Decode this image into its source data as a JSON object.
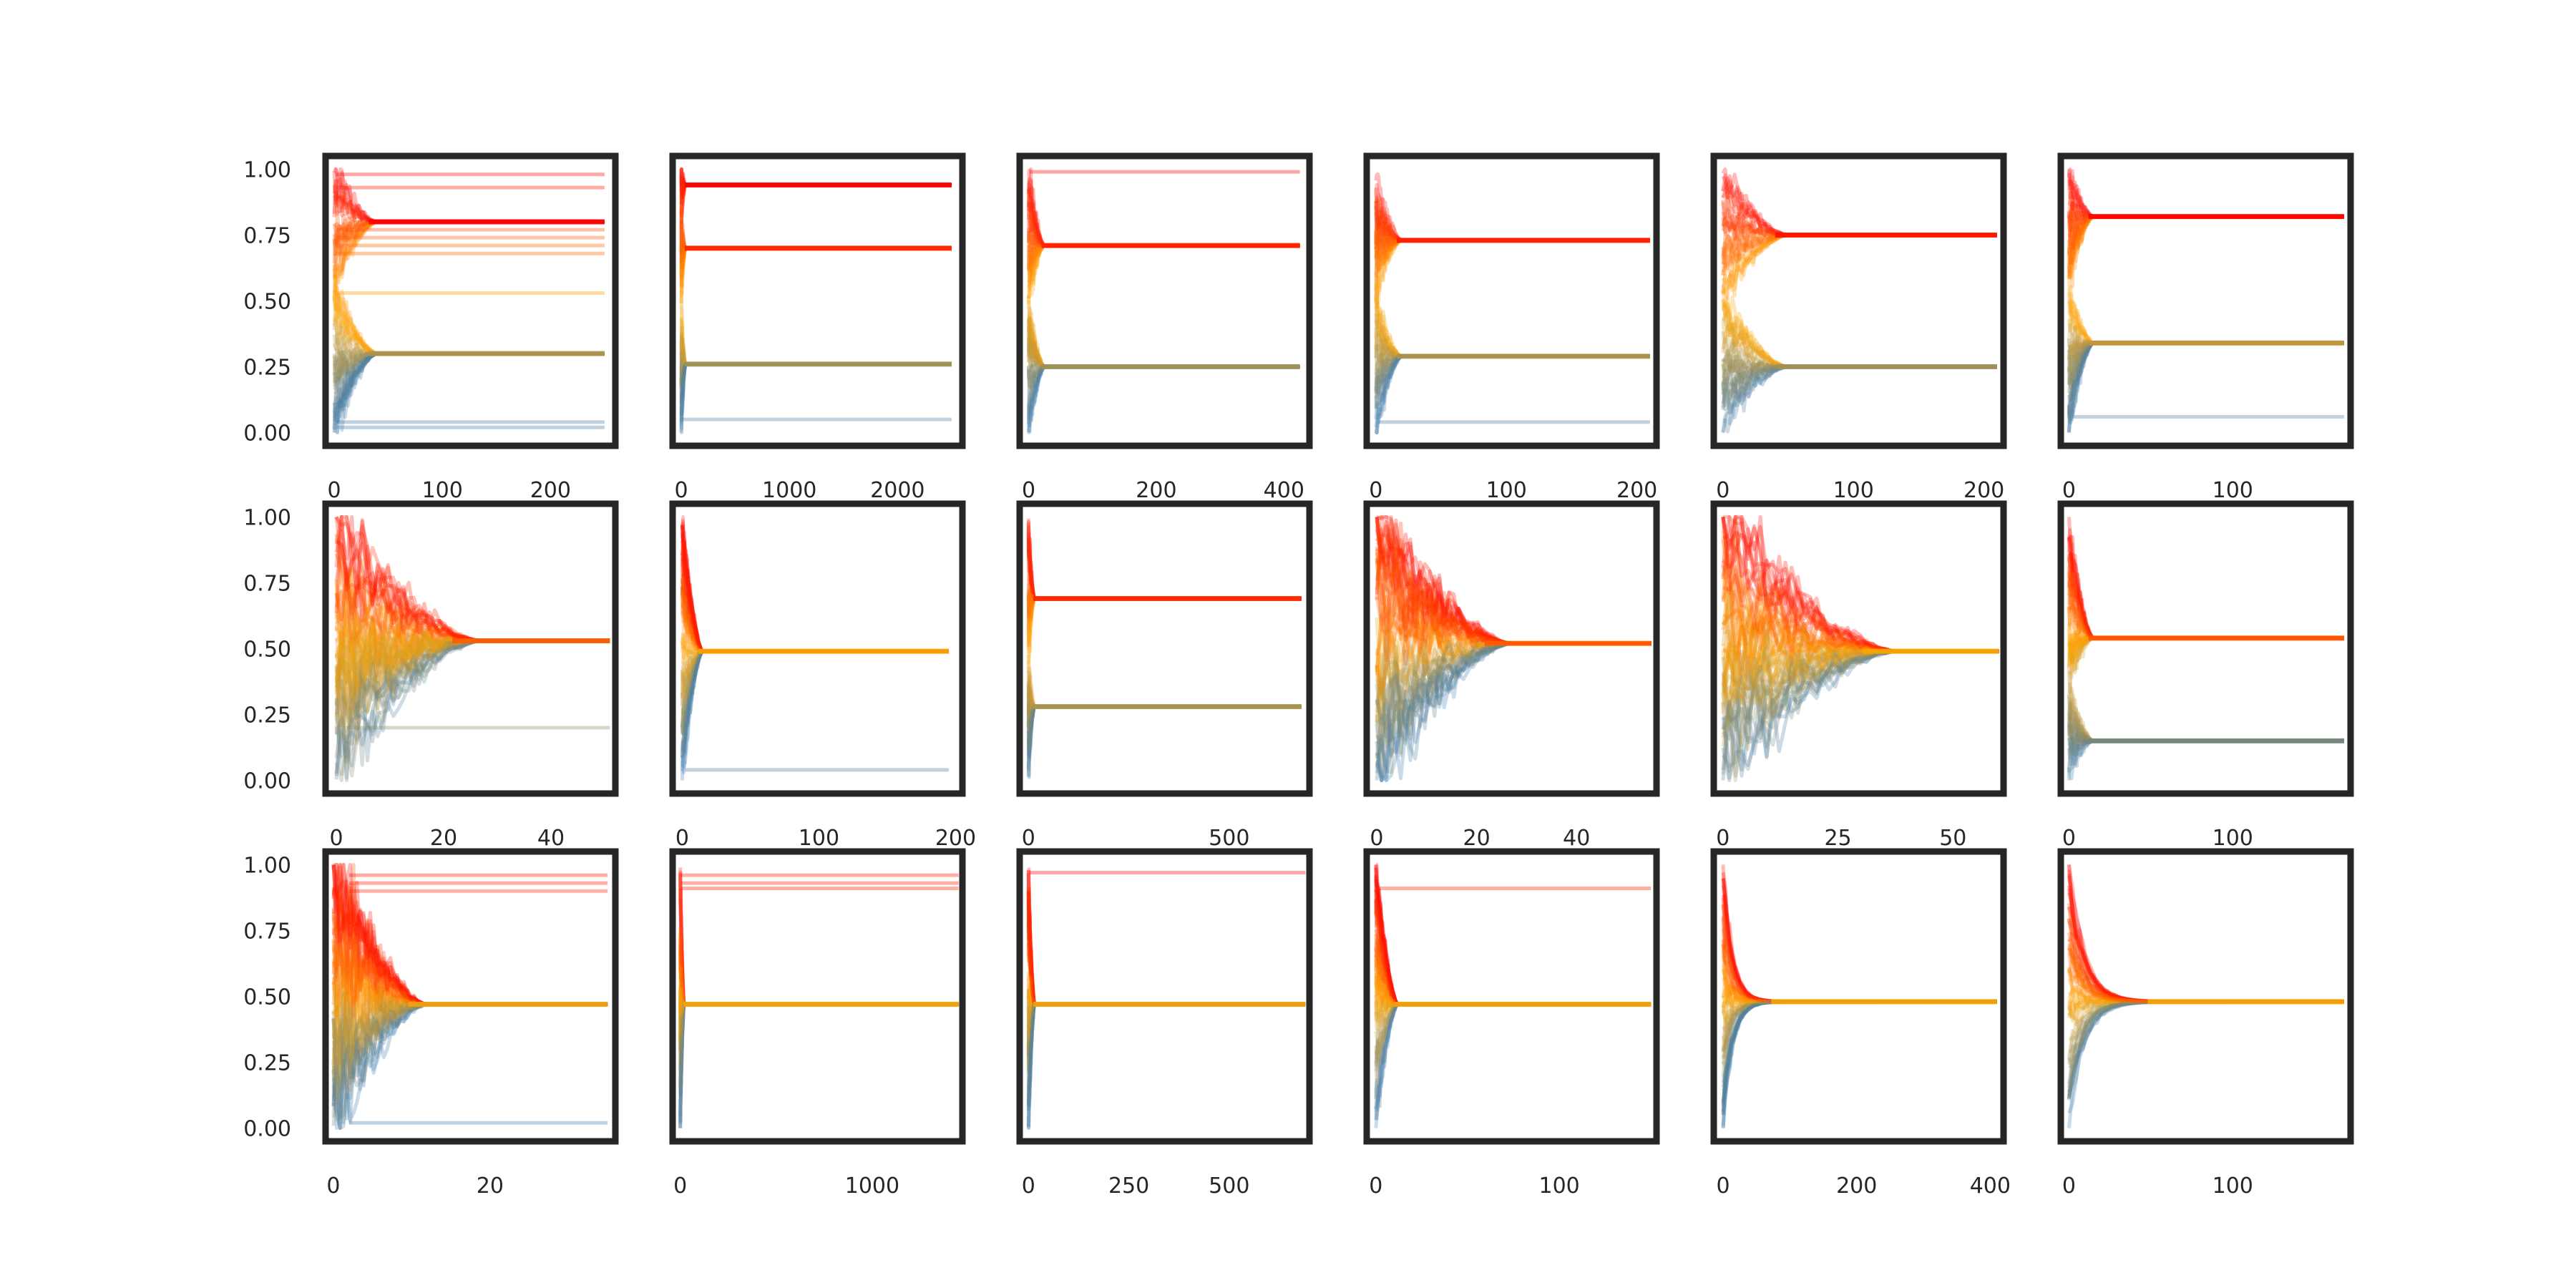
{
  "figure": {
    "rows": 3,
    "cols": 6,
    "series_colors": {
      "start_high": "#ff0000",
      "mid": "#ffa500",
      "start_low": "#3b7bb3"
    }
  },
  "chart_data": [
    {
      "type": "line",
      "xlim": [
        -8,
        260
      ],
      "ylim": [
        -0.05,
        1.05
      ],
      "xticks": [
        0,
        100,
        200
      ],
      "xtick_labels": [
        "0",
        "100",
        "200"
      ],
      "yticks": [
        0,
        0.25,
        0.5,
        0.75,
        1
      ],
      "ytick_labels": [
        "0.00",
        "0.25",
        "0.50",
        "0.75",
        "1.00"
      ],
      "x_max": 250,
      "t_converge": 40,
      "mode": "clusters",
      "clusters": [
        0.8,
        0.3
      ],
      "stuck": [
        0.98,
        0.93,
        0.77,
        0.74,
        0.71,
        0.68,
        0.53,
        0.04,
        0.02
      ],
      "grid": false
    },
    {
      "type": "line",
      "xlim": [
        -80,
        2600
      ],
      "ylim": [
        -0.05,
        1.05
      ],
      "xticks": [
        0,
        1000,
        2000
      ],
      "xtick_labels": [
        "0",
        "1000",
        "2000"
      ],
      "yticks": [
        0,
        0.25,
        0.5,
        0.75,
        1
      ],
      "ytick_labels": [
        "",
        "",
        "",
        "",
        ""
      ],
      "x_max": 2500,
      "t_converge": 40,
      "mode": "clusters",
      "clusters": [
        0.94,
        0.7,
        0.26
      ],
      "stuck": [
        0.05
      ],
      "grid": false
    },
    {
      "type": "line",
      "xlim": [
        -14,
        440
      ],
      "ylim": [
        -0.05,
        1.05
      ],
      "xticks": [
        0,
        200,
        400
      ],
      "xtick_labels": [
        "0",
        "200",
        "400"
      ],
      "yticks": [
        0,
        0.25,
        0.5,
        0.75,
        1
      ],
      "ytick_labels": [
        "",
        "",
        "",
        "",
        ""
      ],
      "x_max": 425,
      "t_converge": 25,
      "mode": "clusters",
      "clusters": [
        0.71,
        0.25
      ],
      "stuck": [
        0.99
      ],
      "grid": false
    },
    {
      "type": "line",
      "xlim": [
        -7,
        215
      ],
      "ylim": [
        -0.05,
        1.05
      ],
      "xticks": [
        0,
        100,
        200
      ],
      "xtick_labels": [
        "0",
        "100",
        "200"
      ],
      "yticks": [
        0,
        0.25,
        0.5,
        0.75,
        1
      ],
      "ytick_labels": [
        "",
        "",
        "",
        "",
        ""
      ],
      "x_max": 210,
      "t_converge": 20,
      "mode": "clusters",
      "clusters": [
        0.73,
        0.29
      ],
      "stuck": [
        0.04
      ],
      "grid": false
    },
    {
      "type": "line",
      "xlim": [
        -7,
        215
      ],
      "ylim": [
        -0.05,
        1.05
      ],
      "xticks": [
        0,
        100,
        200
      ],
      "xtick_labels": [
        "0",
        "100",
        "200"
      ],
      "yticks": [
        0,
        0.25,
        0.5,
        0.75,
        1
      ],
      "ytick_labels": [
        "",
        "",
        "",
        "",
        ""
      ],
      "x_max": 210,
      "t_converge": 50,
      "mode": "clusters",
      "clusters": [
        0.75,
        0.25
      ],
      "stuck": [],
      "grid": false
    },
    {
      "type": "line",
      "xlim": [
        -5,
        172
      ],
      "ylim": [
        -0.05,
        1.05
      ],
      "xticks": [
        0,
        100
      ],
      "xtick_labels": [
        "0",
        "100"
      ],
      "yticks": [
        0,
        0.25,
        0.5,
        0.75,
        1
      ],
      "ytick_labels": [
        "",
        "",
        "",
        "",
        ""
      ],
      "x_max": 168,
      "t_converge": 15,
      "mode": "clusters",
      "clusters": [
        0.82,
        0.34
      ],
      "stuck": [
        0.06
      ],
      "grid": false
    },
    {
      "type": "line",
      "xlim": [
        -2,
        52
      ],
      "ylim": [
        -0.05,
        1.05
      ],
      "xticks": [
        0,
        20,
        40
      ],
      "xtick_labels": [
        "0",
        "20",
        "40"
      ],
      "yticks": [
        0,
        0.25,
        0.5,
        0.75,
        1
      ],
      "ytick_labels": [
        "0.00",
        "0.25",
        "0.50",
        "0.75",
        "1.00"
      ],
      "x_max": 51,
      "t_converge": 27,
      "mode": "diffuse",
      "clusters": [
        0.53
      ],
      "stuck": [
        0.2
      ],
      "grid": false
    },
    {
      "type": "line",
      "xlim": [
        -7,
        205
      ],
      "ylim": [
        -0.05,
        1.05
      ],
      "xticks": [
        0,
        100,
        200
      ],
      "xtick_labels": [
        "0",
        "100",
        "200"
      ],
      "yticks": [
        0,
        0.25,
        0.5,
        0.75,
        1
      ],
      "ytick_labels": [
        "",
        "",
        "",
        "",
        ""
      ],
      "x_max": 195,
      "t_converge": 15,
      "mode": "clusters",
      "clusters": [
        0.49
      ],
      "stuck": [
        0.04
      ],
      "grid": false
    },
    {
      "type": "line",
      "xlim": [
        -22,
        700
      ],
      "ylim": [
        -0.05,
        1.05
      ],
      "xticks": [
        0,
        500
      ],
      "xtick_labels": [
        "0",
        "500"
      ],
      "yticks": [
        0,
        0.25,
        0.5,
        0.75,
        1
      ],
      "ytick_labels": [
        "",
        "",
        "",
        "",
        ""
      ],
      "x_max": 680,
      "t_converge": 15,
      "mode": "clusters",
      "clusters": [
        0.69,
        0.28
      ],
      "stuck": [],
      "grid": false
    },
    {
      "type": "line",
      "xlim": [
        -2,
        56
      ],
      "ylim": [
        -0.05,
        1.05
      ],
      "xticks": [
        0,
        20,
        40
      ],
      "xtick_labels": [
        "0",
        "20",
        "40"
      ],
      "yticks": [
        0,
        0.25,
        0.5,
        0.75,
        1
      ],
      "ytick_labels": [
        "",
        "",
        "",
        "",
        ""
      ],
      "x_max": 55,
      "t_converge": 27,
      "mode": "diffuse",
      "clusters": [
        0.52
      ],
      "stuck": [],
      "grid": false
    },
    {
      "type": "line",
      "xlim": [
        -2,
        61
      ],
      "ylim": [
        -0.05,
        1.05
      ],
      "xticks": [
        0,
        25,
        50
      ],
      "xtick_labels": [
        "0",
        "25",
        "50"
      ],
      "yticks": [
        0,
        0.25,
        0.5,
        0.75,
        1
      ],
      "ytick_labels": [
        "",
        "",
        "",
        "",
        ""
      ],
      "x_max": 60,
      "t_converge": 38,
      "mode": "diffuse",
      "clusters": [
        0.49
      ],
      "stuck": [],
      "grid": false
    },
    {
      "type": "line",
      "xlim": [
        -5,
        172
      ],
      "ylim": [
        -0.05,
        1.05
      ],
      "xticks": [
        0,
        100
      ],
      "xtick_labels": [
        "0",
        "100"
      ],
      "yticks": [
        0,
        0.25,
        0.5,
        0.75,
        1
      ],
      "ytick_labels": [
        "",
        "",
        "",
        "",
        ""
      ],
      "x_max": 168,
      "t_converge": 15,
      "mode": "clusters",
      "clusters": [
        0.54,
        0.15
      ],
      "stuck": [],
      "grid": false
    },
    {
      "type": "line",
      "xlim": [
        -1,
        36
      ],
      "ylim": [
        -0.05,
        1.05
      ],
      "xticks": [
        0,
        20
      ],
      "xtick_labels": [
        "0",
        "20"
      ],
      "yticks": [
        0,
        0.25,
        0.5,
        0.75,
        1
      ],
      "ytick_labels": [
        "0.00",
        "0.25",
        "0.50",
        "0.75",
        "1.00"
      ],
      "x_max": 35,
      "t_converge": 12,
      "mode": "diffuse",
      "clusters": [
        0.47
      ],
      "stuck": [
        0.96,
        0.93,
        0.9,
        0.02
      ],
      "grid": false
    },
    {
      "type": "line",
      "xlim": [
        -40,
        1470
      ],
      "ylim": [
        -0.05,
        1.05
      ],
      "xticks": [
        0,
        1000
      ],
      "xtick_labels": [
        "0",
        "1000"
      ],
      "yticks": [
        0,
        0.25,
        0.5,
        0.75,
        1
      ],
      "ytick_labels": [
        "",
        "",
        "",
        "",
        ""
      ],
      "x_max": 1450,
      "t_converge": 20,
      "mode": "clusters",
      "clusters": [
        0.47
      ],
      "stuck": [
        0.96,
        0.93,
        0.91
      ],
      "grid": false
    },
    {
      "type": "line",
      "xlim": [
        -22,
        700
      ],
      "ylim": [
        -0.05,
        1.05
      ],
      "xticks": [
        0,
        250,
        500
      ],
      "xtick_labels": [
        "0",
        "250",
        "500"
      ],
      "yticks": [
        0,
        0.25,
        0.5,
        0.75,
        1
      ],
      "ytick_labels": [
        "",
        "",
        "",
        "",
        ""
      ],
      "x_max": 690,
      "t_converge": 15,
      "mode": "clusters",
      "clusters": [
        0.47
      ],
      "stuck": [
        0.97
      ],
      "grid": false
    },
    {
      "type": "line",
      "xlim": [
        -5,
        153
      ],
      "ylim": [
        -0.05,
        1.05
      ],
      "xticks": [
        0,
        100
      ],
      "xtick_labels": [
        "0",
        "100"
      ],
      "yticks": [
        0,
        0.25,
        0.5,
        0.75,
        1
      ],
      "ytick_labels": [
        "",
        "",
        "",
        "",
        ""
      ],
      "x_max": 150,
      "t_converge": 12,
      "mode": "clusters",
      "clusters": [
        0.47
      ],
      "stuck": [
        0.91
      ],
      "grid": false
    },
    {
      "type": "line",
      "xlim": [
        -14,
        420
      ],
      "ylim": [
        -0.05,
        1.05
      ],
      "xticks": [
        0,
        200,
        400
      ],
      "xtick_labels": [
        "0",
        "200",
        "400"
      ],
      "yticks": [
        0,
        0.25,
        0.5,
        0.75,
        1
      ],
      "ytick_labels": [
        "",
        "",
        "",
        "",
        ""
      ],
      "x_max": 410,
      "t_converge": 90,
      "mode": "decay",
      "clusters": [
        0.48
      ],
      "stuck": [],
      "grid": false
    },
    {
      "type": "line",
      "xlim": [
        -5,
        172
      ],
      "ylim": [
        -0.05,
        1.05
      ],
      "xticks": [
        0,
        100
      ],
      "xtick_labels": [
        "0",
        "100"
      ],
      "yticks": [
        0,
        0.25,
        0.5,
        0.75,
        1
      ],
      "ytick_labels": [
        "",
        "",
        "",
        "",
        ""
      ],
      "x_max": 168,
      "t_converge": 60,
      "mode": "decay",
      "clusters": [
        0.48
      ],
      "stuck": [],
      "grid": false
    }
  ]
}
